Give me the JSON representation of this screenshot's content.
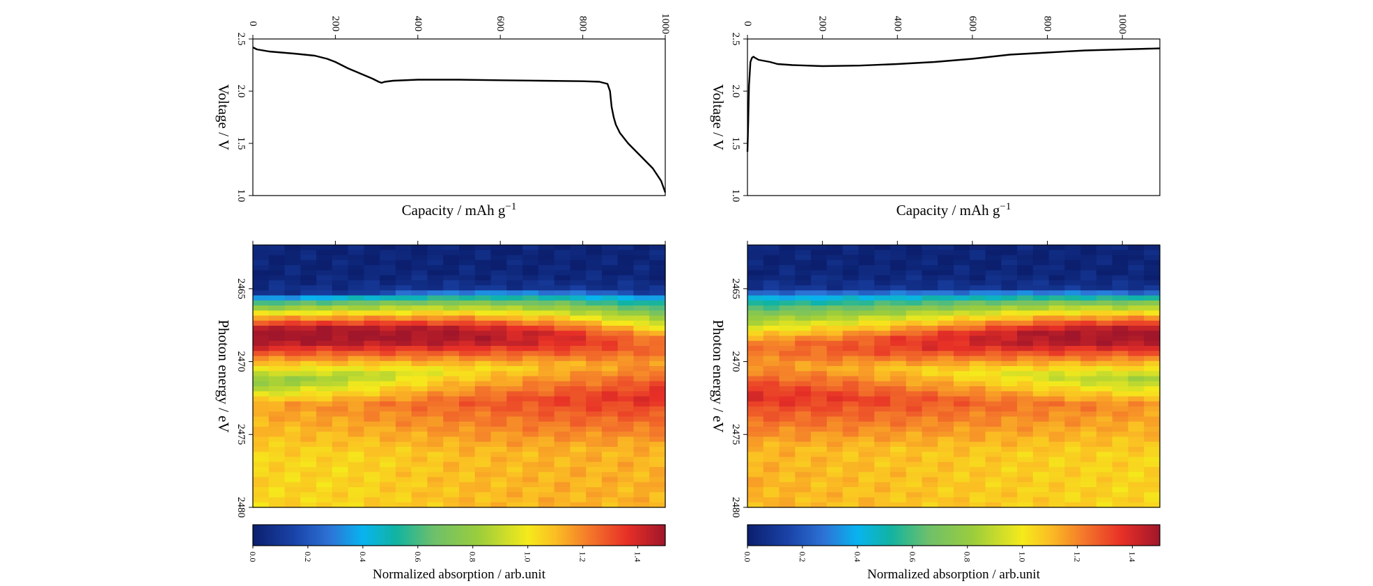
{
  "chart_data": [
    {
      "type": "line",
      "panel": "top-left",
      "xlabel": "Capacity / mAh g",
      "xlabel_sup": "−1",
      "ylabel": "Voltage / V",
      "xlim": [
        0,
        1000
      ],
      "ylim": [
        1.0,
        2.5
      ],
      "xticks": [
        0,
        200,
        400,
        600,
        800,
        1000
      ],
      "xtick_labels": [
        "0",
        "200",
        "400",
        "600",
        "800",
        "1000"
      ],
      "yticks": [
        1.0,
        1.5,
        2.0,
        2.5
      ],
      "ytick_labels": [
        "1.0",
        "1.5",
        "2.0",
        "2.5"
      ],
      "grid": false,
      "series": [
        {
          "x": [
            0,
            10,
            40,
            100,
            150,
            180,
            200,
            230,
            260,
            290,
            305,
            312,
            320,
            340,
            400,
            500,
            600,
            700,
            800,
            840,
            860,
            866,
            870,
            875,
            880,
            890,
            910,
            940,
            970,
            990,
            1000
          ],
          "y": [
            2.42,
            2.4,
            2.38,
            2.36,
            2.34,
            2.31,
            2.28,
            2.22,
            2.17,
            2.12,
            2.09,
            2.08,
            2.09,
            2.1,
            2.11,
            2.11,
            2.105,
            2.1,
            2.095,
            2.09,
            2.07,
            2.0,
            1.85,
            1.75,
            1.68,
            1.6,
            1.5,
            1.38,
            1.26,
            1.14,
            1.03
          ]
        }
      ]
    },
    {
      "type": "line",
      "panel": "top-right",
      "xlabel": "Capacity / mAh g",
      "xlabel_sup": "−1",
      "ylabel": "Voltage / V",
      "xlim": [
        0,
        1100
      ],
      "ylim": [
        1.0,
        2.5
      ],
      "xticks": [
        0,
        200,
        400,
        600,
        800,
        1000
      ],
      "xtick_labels": [
        "0",
        "200",
        "400",
        "600",
        "800",
        "1000"
      ],
      "yticks": [
        1.0,
        1.5,
        2.0,
        2.5
      ],
      "ytick_labels": [
        "1.0",
        "1.5",
        "2.0",
        "2.5"
      ],
      "grid": false,
      "series": [
        {
          "x": [
            0,
            2,
            4,
            8,
            12,
            16,
            20,
            30,
            45,
            60,
            80,
            120,
            200,
            300,
            400,
            500,
            600,
            650,
            700,
            800,
            900,
            1000,
            1100
          ],
          "y": [
            1.42,
            1.7,
            2.05,
            2.28,
            2.32,
            2.33,
            2.32,
            2.3,
            2.29,
            2.28,
            2.26,
            2.25,
            2.24,
            2.245,
            2.26,
            2.28,
            2.31,
            2.33,
            2.35,
            2.37,
            2.39,
            2.4,
            2.41
          ]
        }
      ]
    },
    {
      "type": "heatmap",
      "panel": "bottom-left",
      "ylabel": "Photon energy / eV",
      "xlim": [
        0,
        1000
      ],
      "ylim": [
        2462,
        2480
      ],
      "yticks": [
        2465,
        2470,
        2475,
        2480
      ],
      "ytick_labels": [
        "2465",
        "2470",
        "2475",
        "2480"
      ],
      "xticks": [
        0,
        200,
        400,
        600,
        800,
        1000
      ],
      "columns": 26,
      "ridges": {
        "x": [
          0,
          0.25,
          0.5,
          0.75,
          1.0
        ],
        "edge_energy": [
          2466.0,
          2465.8,
          2465.6,
          2465.6,
          2465.8
        ],
        "peak_energy": [
          2468.2,
          2468.2,
          2468.2,
          2468.4,
          2469.0
        ],
        "peak_intensity": [
          1.5,
          1.5,
          1.48,
          1.38,
          1.22
        ],
        "trough_energy": [
          2471.5,
          2471.0,
          2470.6,
          2470.3,
          2470.2
        ],
        "trough_intensity": [
          0.75,
          0.85,
          1.0,
          1.1,
          1.18
        ],
        "hump_energy": [
          2473.0,
          2473.0,
          2472.8,
          2472.6,
          2472.4
        ],
        "hump_intensity": [
          1.15,
          1.2,
          1.27,
          1.33,
          1.38
        ],
        "tail_intensity": [
          1.05,
          1.05,
          1.1,
          1.12,
          1.12
        ]
      }
    },
    {
      "type": "heatmap",
      "panel": "bottom-right",
      "ylabel": "Photon energy / eV",
      "xlim": [
        0,
        1100
      ],
      "ylim": [
        2462,
        2480
      ],
      "yticks": [
        2465,
        2470,
        2475,
        2480
      ],
      "ytick_labels": [
        "2465",
        "2470",
        "2475",
        "2480"
      ],
      "xticks": [
        0,
        200,
        400,
        600,
        800,
        1000
      ],
      "columns": 26,
      "ridges": {
        "x": [
          0,
          0.25,
          0.5,
          0.75,
          1.0
        ],
        "edge_energy": [
          2465.6,
          2465.6,
          2465.6,
          2465.6,
          2465.7
        ],
        "peak_energy": [
          2469.2,
          2469.0,
          2468.6,
          2468.3,
          2468.2
        ],
        "peak_intensity": [
          1.2,
          1.28,
          1.38,
          1.48,
          1.5
        ],
        "trough_energy": [
          2470.3,
          2470.4,
          2470.7,
          2471.0,
          2471.3
        ],
        "trough_intensity": [
          1.18,
          1.12,
          1.02,
          0.9,
          0.82
        ],
        "hump_energy": [
          2472.3,
          2472.5,
          2472.7,
          2472.9,
          2473.0
        ],
        "hump_intensity": [
          1.38,
          1.34,
          1.28,
          1.22,
          1.18
        ],
        "tail_intensity": [
          1.12,
          1.1,
          1.08,
          1.06,
          1.05
        ]
      }
    }
  ],
  "colorbar": {
    "label": "Normalized absorption / arb.unit",
    "min": 0.0,
    "max": 1.5,
    "ticks": [
      0.0,
      0.2,
      0.4,
      0.6,
      0.8,
      1.0,
      1.2,
      1.4
    ],
    "tick_labels": [
      "0.0",
      "0.2",
      "0.4",
      "0.6",
      "0.8",
      "1.0",
      "1.2",
      "1.4"
    ],
    "colormap": "jet",
    "stops": [
      {
        "v": 0.0,
        "color": "#0b1f6e"
      },
      {
        "v": 0.15,
        "color": "#1a43a8"
      },
      {
        "v": 0.28,
        "color": "#2d73d6"
      },
      {
        "v": 0.4,
        "color": "#08b4ef"
      },
      {
        "v": 0.52,
        "color": "#11b3a2"
      },
      {
        "v": 0.66,
        "color": "#6ec06a"
      },
      {
        "v": 0.82,
        "color": "#9bcd3c"
      },
      {
        "v": 1.0,
        "color": "#f5ea1b"
      },
      {
        "v": 1.1,
        "color": "#fbbe23"
      },
      {
        "v": 1.22,
        "color": "#f47a2a"
      },
      {
        "v": 1.36,
        "color": "#e73027"
      },
      {
        "v": 1.5,
        "color": "#a1162a"
      }
    ]
  }
}
